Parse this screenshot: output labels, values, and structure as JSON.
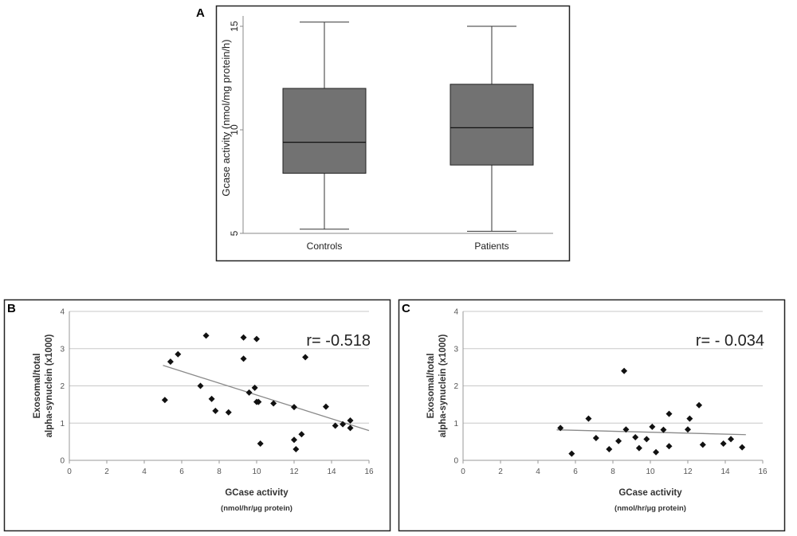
{
  "chart_data": [
    {
      "panel": "A",
      "type": "box",
      "categories": [
        "Controls",
        "Patients"
      ],
      "series": [
        {
          "name": "Controls",
          "min": 5.2,
          "q1": 7.9,
          "median": 9.4,
          "q3": 12.0,
          "max": 15.2
        },
        {
          "name": "Patients",
          "min": 5.1,
          "q1": 8.3,
          "median": 10.1,
          "q3": 12.2,
          "max": 15.0
        }
      ],
      "ylabel": "Gcase activity (nmol/mg protein/h)",
      "ylim": [
        5,
        15
      ],
      "yticks": [
        "5",
        "10",
        "15"
      ],
      "box_color": "#727272"
    },
    {
      "panel": "B",
      "type": "scatter",
      "x": [
        5.1,
        5.4,
        5.8,
        7.0,
        7.3,
        7.6,
        7.8,
        8.5,
        9.3,
        9.3,
        9.6,
        9.9,
        10.0,
        10.0,
        10.2,
        10.1,
        10.9,
        12.0,
        12.1,
        12.0,
        12.4,
        12.6,
        13.7,
        14.2,
        14.6,
        15.0,
        15.0
      ],
      "y": [
        1.62,
        2.65,
        2.85,
        2.0,
        3.35,
        1.65,
        1.33,
        1.29,
        3.3,
        2.73,
        1.82,
        1.95,
        1.57,
        3.26,
        0.45,
        1.57,
        1.53,
        0.55,
        0.3,
        1.43,
        0.7,
        2.77,
        1.44,
        0.93,
        0.97,
        0.87,
        1.07
      ],
      "trendline": {
        "x": [
          5.0,
          16.0
        ],
        "y": [
          2.55,
          0.8
        ]
      },
      "annotation": "r= -0.518",
      "xlabel": "GCase activity",
      "xlabel_sub": "(nmol/hr/µg protein)",
      "ylabel": "Exosomal/total",
      "ylabel2": "alpha-synuclein (x1000)",
      "xlim": [
        0,
        16
      ],
      "ylim": [
        0,
        4
      ],
      "xticks": [
        "0",
        "2",
        "4",
        "6",
        "8",
        "10",
        "12",
        "14",
        "16"
      ],
      "yticks": [
        "0",
        "1",
        "2",
        "3",
        "4"
      ],
      "grid": true
    },
    {
      "panel": "C",
      "type": "scatter",
      "x": [
        5.2,
        5.8,
        6.7,
        7.1,
        7.8,
        8.3,
        8.6,
        8.7,
        9.2,
        9.4,
        9.8,
        10.1,
        10.3,
        10.7,
        11.0,
        11.0,
        12.0,
        12.1,
        12.6,
        12.8,
        13.9,
        14.3,
        14.9
      ],
      "y": [
        0.87,
        0.18,
        1.12,
        0.6,
        0.3,
        0.52,
        2.4,
        0.83,
        0.62,
        0.33,
        0.57,
        0.9,
        0.22,
        0.82,
        0.38,
        1.25,
        0.83,
        1.12,
        1.48,
        0.42,
        0.45,
        0.57,
        0.35
      ],
      "trendline": {
        "x": [
          5.0,
          15.1
        ],
        "y": [
          0.82,
          0.69
        ]
      },
      "annotation": "r= - 0.034",
      "xlabel": "GCase activity",
      "xlabel_sub": "(nmol/hr/µg protein)",
      "ylabel": "Exosomal/total",
      "ylabel2": "alpha-synuclein (x1000)",
      "xlim": [
        0,
        16
      ],
      "ylim": [
        0,
        4
      ],
      "xticks": [
        "0",
        "2",
        "4",
        "6",
        "8",
        "10",
        "12",
        "14",
        "16"
      ],
      "yticks": [
        "0",
        "1",
        "2",
        "3",
        "4"
      ],
      "grid": true
    }
  ]
}
